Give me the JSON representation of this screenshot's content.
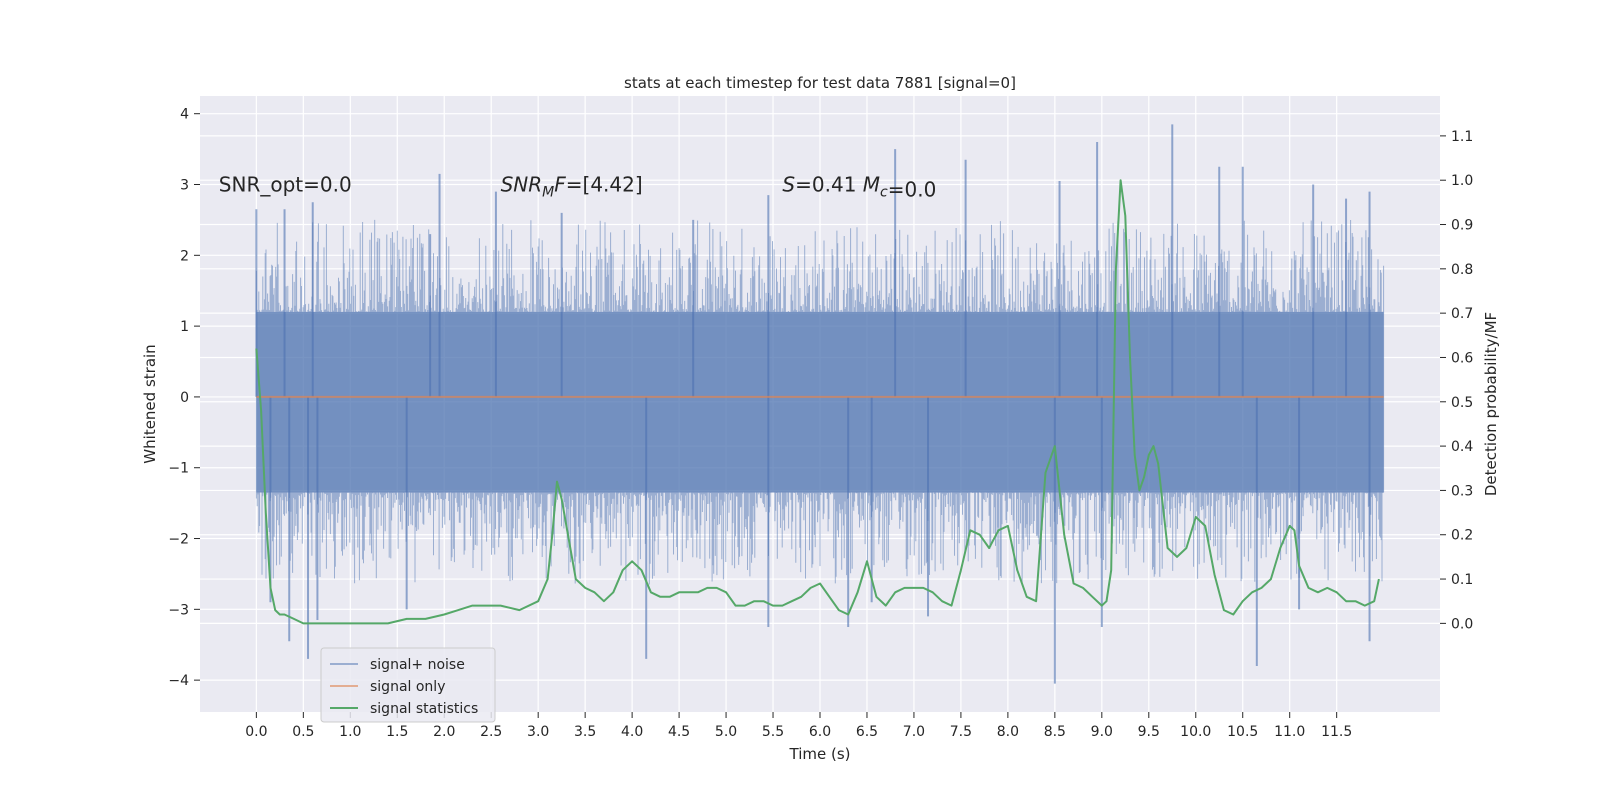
{
  "chart_data": {
    "type": "line",
    "title": "stats at each timestep for test data 7881 [signal=0]",
    "xlabel": "Time (s)",
    "ylabel_left": "Whitened strain",
    "ylabel_right": "Detection probability/MF",
    "xlim": [
      -0.6,
      12.6
    ],
    "ylim_left": [
      -4.45,
      4.25
    ],
    "ylim_right": [
      -0.2,
      1.19
    ],
    "x_ticks": [
      0.0,
      0.5,
      1.0,
      1.5,
      2.0,
      2.5,
      3.0,
      3.5,
      4.0,
      4.5,
      5.0,
      5.5,
      6.0,
      6.5,
      7.0,
      7.5,
      8.0,
      8.5,
      9.0,
      9.5,
      10.0,
      10.5,
      11.0,
      11.5
    ],
    "x_tick_labels": [
      "0.0",
      "0.5",
      "1.0",
      "1.5",
      "2.0",
      "2.5",
      "3.0",
      "3.5",
      "4.0",
      "4.5",
      "5.0",
      "5.5",
      "6.0",
      "6.5",
      "7.0",
      "7.5",
      "8.0",
      "8.5",
      "9.0",
      "9.5",
      "10.0",
      "10.5",
      "11.0",
      "11.5"
    ],
    "y_ticks_left": [
      -4,
      -3,
      -2,
      -1,
      0,
      1,
      2,
      3,
      4
    ],
    "y_tick_labels_left": [
      "−4",
      "−3",
      "−2",
      "−1",
      "0",
      "1",
      "2",
      "3",
      "4"
    ],
    "y_ticks_right": [
      0.0,
      0.1,
      0.2,
      0.3,
      0.4,
      0.5,
      0.6,
      0.7,
      0.8,
      0.9,
      1.0,
      1.1
    ],
    "y_tick_labels_right": [
      "0.0",
      "0.1",
      "0.2",
      "0.3",
      "0.4",
      "0.5",
      "0.6",
      "0.7",
      "0.8",
      "0.9",
      "1.0",
      "1.1"
    ],
    "grid": true,
    "legend_position": "lower-left",
    "annotations": [
      {
        "name": "snr-opt-annotation",
        "text": "SNR_opt=0.0",
        "x": -0.4,
        "y": 3.0
      },
      {
        "name": "snr-mf-annotation",
        "text": "SNR_MF=[4.42]",
        "x": 2.6,
        "y": 3.0
      },
      {
        "name": "s-mc-annotation",
        "text": "S=0.41   M_c=0.0",
        "x": 5.6,
        "y": 3.0
      }
    ],
    "series": [
      {
        "name": "signal+ noise",
        "color": "#4c72b0",
        "alpha": 0.5,
        "axis": "left",
        "x_range": [
          0.0,
          12.0
        ],
        "envelope_typical": [
          -1.35,
          1.2
        ],
        "spikes": [
          {
            "x": 0.0,
            "y": 2.65
          },
          {
            "x": 0.3,
            "y": 2.65
          },
          {
            "x": 0.6,
            "y": 2.75
          },
          {
            "x": 0.15,
            "y": -2.9
          },
          {
            "x": 0.35,
            "y": -3.45
          },
          {
            "x": 0.55,
            "y": -3.7
          },
          {
            "x": 0.65,
            "y": -3.15
          },
          {
            "x": 1.85,
            "y": 2.3
          },
          {
            "x": 1.95,
            "y": 3.15
          },
          {
            "x": 1.6,
            "y": -3.0
          },
          {
            "x": 2.55,
            "y": 2.9
          },
          {
            "x": 3.25,
            "y": 2.6
          },
          {
            "x": 4.15,
            "y": -3.7
          },
          {
            "x": 4.65,
            "y": 2.5
          },
          {
            "x": 5.45,
            "y": 2.85
          },
          {
            "x": 5.45,
            "y": -3.25
          },
          {
            "x": 6.3,
            "y": -3.25
          },
          {
            "x": 6.8,
            "y": 3.5
          },
          {
            "x": 6.55,
            "y": -2.9
          },
          {
            "x": 7.55,
            "y": 3.35
          },
          {
            "x": 7.15,
            "y": -3.1
          },
          {
            "x": 8.55,
            "y": 3.05
          },
          {
            "x": 8.5,
            "y": -4.05
          },
          {
            "x": 8.95,
            "y": 3.6
          },
          {
            "x": 9.0,
            "y": -3.25
          },
          {
            "x": 9.75,
            "y": 3.85
          },
          {
            "x": 10.25,
            "y": 3.25
          },
          {
            "x": 10.5,
            "y": 3.25
          },
          {
            "x": 10.65,
            "y": -3.8
          },
          {
            "x": 11.1,
            "y": -3.0
          },
          {
            "x": 11.25,
            "y": 3.0
          },
          {
            "x": 11.6,
            "y": 2.8
          },
          {
            "x": 11.85,
            "y": 2.9
          },
          {
            "x": 11.85,
            "y": -3.45
          }
        ]
      },
      {
        "name": "signal only",
        "color": "#dd8452",
        "axis": "left",
        "x": [
          0.0,
          12.0
        ],
        "y": [
          0.0,
          0.0
        ]
      },
      {
        "name": "signal statistics",
        "color": "#55a868",
        "axis": "right",
        "x": [
          0.0,
          0.05,
          0.1,
          0.15,
          0.2,
          0.25,
          0.3,
          0.4,
          0.5,
          0.6,
          0.8,
          1.0,
          1.2,
          1.4,
          1.6,
          1.8,
          2.0,
          2.15,
          2.3,
          2.4,
          2.6,
          2.8,
          3.0,
          3.1,
          3.15,
          3.2,
          3.25,
          3.3,
          3.35,
          3.4,
          3.5,
          3.6,
          3.7,
          3.8,
          3.9,
          4.0,
          4.1,
          4.2,
          4.3,
          4.4,
          4.5,
          4.6,
          4.7,
          4.8,
          4.9,
          5.0,
          5.1,
          5.2,
          5.3,
          5.4,
          5.5,
          5.6,
          5.7,
          5.8,
          5.9,
          6.0,
          6.1,
          6.2,
          6.3,
          6.4,
          6.5,
          6.6,
          6.7,
          6.8,
          6.9,
          7.0,
          7.1,
          7.2,
          7.3,
          7.4,
          7.5,
          7.6,
          7.7,
          7.8,
          7.9,
          8.0,
          8.1,
          8.2,
          8.3,
          8.4,
          8.5,
          8.6,
          8.7,
          8.8,
          8.9,
          9.0,
          9.05,
          9.1,
          9.15,
          9.2,
          9.25,
          9.3,
          9.35,
          9.4,
          9.45,
          9.5,
          9.55,
          9.6,
          9.7,
          9.8,
          9.9,
          10.0,
          10.1,
          10.2,
          10.3,
          10.4,
          10.5,
          10.6,
          10.7,
          10.8,
          10.9,
          11.0,
          11.05,
          11.1,
          11.2,
          11.3,
          11.4,
          11.5,
          11.6,
          11.7,
          11.8,
          11.9,
          11.95
        ],
        "y": [
          0.62,
          0.48,
          0.25,
          0.08,
          0.03,
          0.02,
          0.02,
          0.01,
          0.0,
          0.0,
          0.0,
          0.0,
          0.0,
          0.0,
          0.01,
          0.01,
          0.02,
          0.03,
          0.04,
          0.04,
          0.04,
          0.03,
          0.05,
          0.1,
          0.2,
          0.32,
          0.28,
          0.22,
          0.16,
          0.1,
          0.08,
          0.07,
          0.05,
          0.07,
          0.12,
          0.14,
          0.12,
          0.07,
          0.06,
          0.06,
          0.07,
          0.07,
          0.07,
          0.08,
          0.08,
          0.07,
          0.04,
          0.04,
          0.05,
          0.05,
          0.04,
          0.04,
          0.05,
          0.06,
          0.08,
          0.09,
          0.06,
          0.03,
          0.02,
          0.07,
          0.14,
          0.06,
          0.04,
          0.07,
          0.08,
          0.08,
          0.08,
          0.07,
          0.05,
          0.04,
          0.12,
          0.21,
          0.2,
          0.17,
          0.21,
          0.22,
          0.12,
          0.06,
          0.05,
          0.34,
          0.4,
          0.2,
          0.09,
          0.08,
          0.06,
          0.04,
          0.05,
          0.12,
          0.8,
          1.0,
          0.92,
          0.6,
          0.38,
          0.3,
          0.33,
          0.38,
          0.4,
          0.36,
          0.17,
          0.15,
          0.17,
          0.24,
          0.22,
          0.11,
          0.03,
          0.02,
          0.05,
          0.07,
          0.08,
          0.1,
          0.17,
          0.22,
          0.21,
          0.13,
          0.08,
          0.07,
          0.08,
          0.07,
          0.05,
          0.05,
          0.04,
          0.05,
          0.1
        ]
      }
    ]
  }
}
